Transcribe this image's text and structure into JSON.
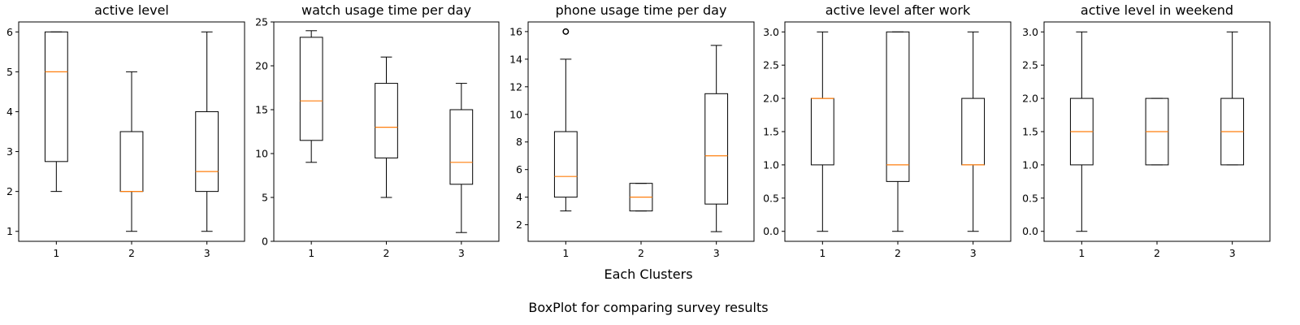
{
  "figure": {
    "xlabel": "Each Clusters",
    "caption": "BoxPlot for comparing survey results"
  },
  "colors": {
    "box": "#000000",
    "median": "#ff7f0e",
    "background": "#ffffff"
  },
  "chart_data": [
    {
      "type": "box",
      "title": "active level",
      "categories": [
        "1",
        "2",
        "3"
      ],
      "ylim": [
        0.75,
        6.25
      ],
      "yticks": [
        1,
        2,
        3,
        4,
        5,
        6
      ],
      "boxes": [
        {
          "whisker_low": 2,
          "q1": 2.75,
          "median": 5,
          "q3": 6,
          "whisker_high": 6,
          "outliers": []
        },
        {
          "whisker_low": 1,
          "q1": 2,
          "median": 2,
          "q3": 3.5,
          "whisker_high": 5,
          "outliers": []
        },
        {
          "whisker_low": 1,
          "q1": 2,
          "median": 2.5,
          "q3": 4,
          "whisker_high": 6,
          "outliers": []
        }
      ]
    },
    {
      "type": "box",
      "title": "watch usage time per day",
      "categories": [
        "1",
        "2",
        "3"
      ],
      "ylim": [
        0,
        25
      ],
      "yticks": [
        0,
        5,
        10,
        15,
        20,
        25
      ],
      "boxes": [
        {
          "whisker_low": 9,
          "q1": 11.5,
          "median": 16,
          "q3": 23.25,
          "whisker_high": 24,
          "outliers": []
        },
        {
          "whisker_low": 5,
          "q1": 9.5,
          "median": 13,
          "q3": 18,
          "whisker_high": 21,
          "outliers": []
        },
        {
          "whisker_low": 1,
          "q1": 6.5,
          "median": 9,
          "q3": 15,
          "whisker_high": 18,
          "outliers": []
        }
      ]
    },
    {
      "type": "box",
      "title": "phone usage time per day",
      "categories": [
        "1",
        "2",
        "3"
      ],
      "ylim": [
        0.8,
        16.7
      ],
      "yticks": [
        2,
        4,
        6,
        8,
        10,
        12,
        14,
        16
      ],
      "boxes": [
        {
          "whisker_low": 3,
          "q1": 4,
          "median": 5.5,
          "q3": 8.75,
          "whisker_high": 14,
          "outliers": [
            16
          ]
        },
        {
          "whisker_low": 3,
          "q1": 3,
          "median": 4,
          "q3": 5,
          "whisker_high": 5,
          "outliers": []
        },
        {
          "whisker_low": 1.5,
          "q1": 3.5,
          "median": 7,
          "q3": 11.5,
          "whisker_high": 15,
          "outliers": []
        }
      ]
    },
    {
      "type": "box",
      "title": "active level after work",
      "categories": [
        "1",
        "2",
        "3"
      ],
      "ylim": [
        -0.15,
        3.15
      ],
      "yticks": [
        "0.0",
        "0.5",
        "1.0",
        "1.5",
        "2.0",
        "2.5",
        "3.0"
      ],
      "boxes": [
        {
          "whisker_low": 0,
          "q1": 1,
          "median": 2,
          "q3": 2,
          "whisker_high": 3,
          "outliers": []
        },
        {
          "whisker_low": 0,
          "q1": 0.75,
          "median": 1,
          "q3": 3,
          "whisker_high": 3,
          "outliers": []
        },
        {
          "whisker_low": 0,
          "q1": 1,
          "median": 1,
          "q3": 2,
          "whisker_high": 3,
          "outliers": []
        }
      ]
    },
    {
      "type": "box",
      "title": "active level in weekend",
      "categories": [
        "1",
        "2",
        "3"
      ],
      "ylim": [
        -0.15,
        3.15
      ],
      "yticks": [
        "0.0",
        "0.5",
        "1.0",
        "1.5",
        "2.0",
        "2.5",
        "3.0"
      ],
      "boxes": [
        {
          "whisker_low": 0,
          "q1": 1,
          "median": 1.5,
          "q3": 2,
          "whisker_high": 3,
          "outliers": []
        },
        {
          "whisker_low": 1,
          "q1": 1,
          "median": 1.5,
          "q3": 2,
          "whisker_high": 2,
          "outliers": []
        },
        {
          "whisker_low": 1,
          "q1": 1,
          "median": 1.5,
          "q3": 2,
          "whisker_high": 3,
          "outliers": []
        }
      ]
    }
  ]
}
